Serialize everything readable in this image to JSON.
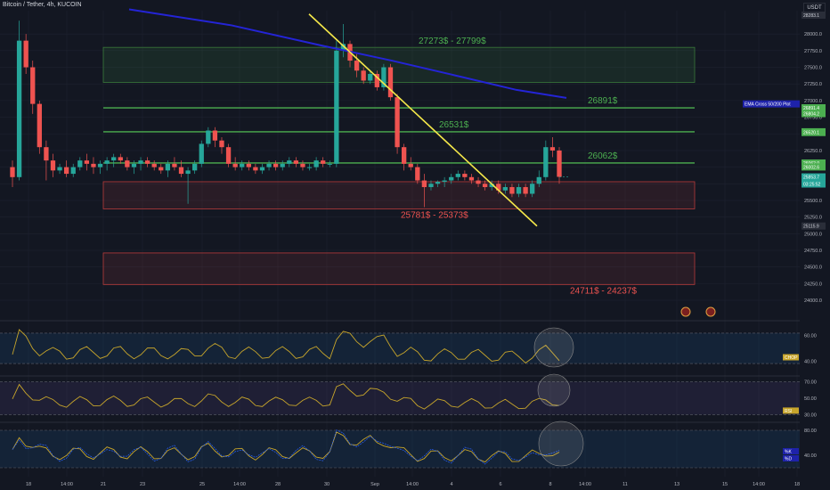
{
  "header": {
    "title": "Bitcoin / Tether, 4h, KUCOIN",
    "currency": "USDT"
  },
  "colors": {
    "background": "#131722",
    "grid": "#1e2230",
    "bull": "#26a69a",
    "bear": "#ef5350",
    "ema": "#2424d6",
    "trendline": "#f5e84a",
    "level_line": "#4caf50",
    "supply_fill": "rgba(76,175,80,0.12)",
    "demand_fill": "rgba(239,83,80,0.10)",
    "zone_border_red": "#b83b3b",
    "zone_border_green": "#3a7a3a",
    "osc_line": "#c7a52b",
    "stoch_d": "#2962ff"
  },
  "chart_data": {
    "type": "candlestick",
    "symbol": "BTC/USDT",
    "timeframe": "4h",
    "exchange": "KUCOIN",
    "y_ticks": [
      28000,
      27750,
      27500,
      27250,
      27000,
      26750,
      26500,
      26250,
      26000,
      25750,
      25500,
      25250,
      25000,
      24750,
      24500,
      24250,
      24000
    ],
    "ylim": [
      23800,
      28350
    ],
    "x_labels": [
      "18",
      "14:00",
      "21",
      "23",
      "25",
      "14:00",
      "28",
      "30",
      "Sep",
      "14:00",
      "4",
      "6",
      "8",
      "14:00",
      "11",
      "13",
      "15",
      "14:00",
      "18"
    ],
    "ohlc": [
      [
        26000,
        26100,
        25700,
        25850
      ],
      [
        25850,
        28200,
        25800,
        27900
      ],
      [
        27900,
        28000,
        27400,
        27500
      ],
      [
        27500,
        27600,
        26800,
        26950
      ],
      [
        26950,
        27000,
        26200,
        26300
      ],
      [
        26300,
        26400,
        25800,
        26100
      ],
      [
        26100,
        26200,
        25850,
        25950
      ],
      [
        25950,
        26050,
        25900,
        26000
      ],
      [
        26000,
        26100,
        25850,
        25900
      ],
      [
        25900,
        26050,
        25850,
        26000
      ],
      [
        26000,
        26150,
        25950,
        26100
      ],
      [
        26100,
        26200,
        25950,
        26050
      ],
      [
        26050,
        26150,
        25900,
        26000
      ],
      [
        26000,
        26100,
        25900,
        26050
      ],
      [
        26050,
        26150,
        25950,
        26100
      ],
      [
        26100,
        26200,
        26000,
        26150
      ],
      [
        26150,
        26200,
        26050,
        26100
      ],
      [
        26100,
        26150,
        25950,
        26000
      ],
      [
        26000,
        26100,
        25900,
        26050
      ],
      [
        26050,
        26150,
        25950,
        26100
      ],
      [
        26100,
        26150,
        26000,
        26050
      ],
      [
        26050,
        26100,
        25950,
        26000
      ],
      [
        26000,
        26050,
        25900,
        25950
      ],
      [
        25950,
        26100,
        25850,
        26050
      ],
      [
        26050,
        26150,
        25950,
        26000
      ],
      [
        26000,
        26100,
        25850,
        25900
      ],
      [
        25900,
        26000,
        25450,
        25950
      ],
      [
        25950,
        26100,
        25900,
        26050
      ],
      [
        26050,
        26400,
        26000,
        26350
      ],
      [
        26350,
        26600,
        26300,
        26550
      ],
      [
        26550,
        26600,
        26300,
        26400
      ],
      [
        26400,
        26450,
        26200,
        26300
      ],
      [
        26300,
        26350,
        26000,
        26050
      ],
      [
        26050,
        26150,
        25950,
        26000
      ],
      [
        26000,
        26100,
        25950,
        26050
      ],
      [
        26050,
        26100,
        25950,
        26000
      ],
      [
        26000,
        26050,
        25900,
        25950
      ],
      [
        25950,
        26050,
        25900,
        26000
      ],
      [
        26000,
        26100,
        25950,
        26050
      ],
      [
        26050,
        26100,
        25950,
        26000
      ],
      [
        26000,
        26100,
        25950,
        26050
      ],
      [
        26050,
        26150,
        26000,
        26100
      ],
      [
        26100,
        26150,
        26000,
        26050
      ],
      [
        26050,
        26100,
        25950,
        26000
      ],
      [
        26000,
        26050,
        25950,
        26000
      ],
      [
        26000,
        26150,
        25950,
        26100
      ],
      [
        26100,
        26150,
        26000,
        26050
      ],
      [
        26050,
        26100,
        26000,
        26050
      ],
      [
        26050,
        27900,
        26000,
        27750
      ],
      [
        27750,
        28150,
        27650,
        27850
      ],
      [
        27850,
        27900,
        27500,
        27600
      ],
      [
        27600,
        27700,
        27350,
        27450
      ],
      [
        27450,
        27500,
        27250,
        27300
      ],
      [
        27300,
        27450,
        27250,
        27400
      ],
      [
        27400,
        27450,
        27150,
        27200
      ],
      [
        27200,
        27550,
        27150,
        27500
      ],
      [
        27500,
        27550,
        27000,
        27050
      ],
      [
        27050,
        27100,
        26200,
        26300
      ],
      [
        26300,
        26350,
        25950,
        26050
      ],
      [
        26050,
        26150,
        25950,
        26000
      ],
      [
        26000,
        26050,
        25750,
        25800
      ],
      [
        25800,
        25900,
        25400,
        25700
      ],
      [
        25700,
        25800,
        25650,
        25750
      ],
      [
        25750,
        25800,
        25700,
        25780
      ],
      [
        25780,
        25850,
        25700,
        25800
      ],
      [
        25800,
        25900,
        25750,
        25850
      ],
      [
        25850,
        25950,
        25800,
        25900
      ],
      [
        25900,
        25950,
        25800,
        25850
      ],
      [
        25850,
        25900,
        25750,
        25800
      ],
      [
        25800,
        25850,
        25700,
        25750
      ],
      [
        25750,
        25800,
        25650,
        25700
      ],
      [
        25700,
        25800,
        25650,
        25750
      ],
      [
        25750,
        25800,
        25600,
        25650
      ],
      [
        25650,
        25750,
        25600,
        25700
      ],
      [
        25700,
        25750,
        25550,
        25600
      ],
      [
        25600,
        25750,
        25550,
        25700
      ],
      [
        25700,
        25750,
        25550,
        25600
      ],
      [
        25600,
        25800,
        25550,
        25750
      ],
      [
        25750,
        25950,
        25700,
        25850
      ],
      [
        25850,
        26400,
        25800,
        26300
      ],
      [
        26300,
        26450,
        26150,
        26250
      ],
      [
        26250,
        26300,
        25750,
        25854
      ]
    ],
    "ema_label": "EMA Cross 50/200 Plot",
    "price_tags": [
      {
        "value": 28283.1,
        "label": "28283.1"
      },
      {
        "value": 26891.4,
        "label": "26891.4"
      },
      {
        "value": 26804.2,
        "label": "26804.2"
      },
      {
        "value": 26531.1,
        "label": "26531.1"
      },
      {
        "value": 26520.1,
        "label": "26520.1"
      },
      {
        "value": 26062.0,
        "label": "26062.0"
      },
      {
        "value": 26002.6,
        "label": "26002.6"
      },
      {
        "value": 25853.7,
        "label": "25853.7"
      },
      {
        "value": 25115.9,
        "label": "25115.9"
      }
    ],
    "countdown": "03:25:52",
    "zones": [
      {
        "label": "27273$ - 27799$",
        "top": 27799,
        "bottom": 27273,
        "kind": "supply"
      },
      {
        "label": "25781$ - 25373$",
        "top": 25781,
        "bottom": 25373,
        "kind": "demand"
      },
      {
        "label": "24711$ - 24237$",
        "top": 24711,
        "bottom": 24237,
        "kind": "demand"
      }
    ],
    "levels": [
      {
        "label": "26891$",
        "value": 26891
      },
      {
        "label": "26531$",
        "value": 26531
      },
      {
        "label": "26062$",
        "value": 26062
      }
    ],
    "indicators": [
      {
        "name": "CHOP",
        "ticks": [
          60,
          40
        ],
        "band": [
          61.8,
          38.2
        ],
        "ylim": [
          30,
          70
        ]
      },
      {
        "name": "RSI",
        "ticks": [
          70,
          50,
          30
        ],
        "band": [
          70,
          30
        ],
        "ylim": [
          25,
          75
        ]
      },
      {
        "name": "Stoch",
        "ticks": [
          80,
          40
        ],
        "band": [
          80,
          20
        ],
        "ylim": [
          10,
          90
        ],
        "tags": [
          "%K",
          "%D"
        ]
      }
    ]
  }
}
